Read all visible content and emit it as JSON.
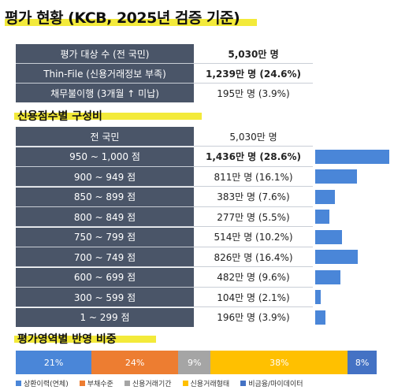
{
  "title": "평가 현황 (KCB, 2025년 검증 기준)",
  "summary": [
    {
      "label": "평가 대상 수 (전 국민)",
      "value": "5,030만 명",
      "bold": true
    },
    {
      "label": "Thin-File (신용거래정보 부족)",
      "value": "1,239만 명 (24.6%)",
      "bold": true
    },
    {
      "label": "채무불이행 (3개월 ↑ 미납)",
      "value": "195만 명 (3.9%)",
      "bold": false
    }
  ],
  "section_scores": "신용점수별 구성비",
  "score_rows": [
    {
      "label": "전 국민",
      "value": "5,030만 명",
      "pct": null,
      "bold": false
    },
    {
      "label": "950 ~ 1,000 점",
      "value": "1,436만 명 (28.6%)",
      "pct": 28.6,
      "bold": true
    },
    {
      "label": "900 ~ 949 점",
      "value": "811만 명 (16.1%)",
      "pct": 16.1,
      "bold": false
    },
    {
      "label": "850 ~ 899 점",
      "value": "383만 명 (7.6%)",
      "pct": 7.6,
      "bold": false
    },
    {
      "label": "800 ~ 849 점",
      "value": "277만 명 (5.5%)",
      "pct": 5.5,
      "bold": false
    },
    {
      "label": "750 ~ 799 점",
      "value": "514만 명 (10.2%)",
      "pct": 10.2,
      "bold": false
    },
    {
      "label": "700 ~ 749 점",
      "value": "826만 명 (16.4%)",
      "pct": 16.4,
      "bold": false
    },
    {
      "label": "600 ~ 699 점",
      "value": "482만 명 (9.6%)",
      "pct": 9.6,
      "bold": false
    },
    {
      "label": "300 ~ 599 점",
      "value": "104만 명 (2.1%)",
      "pct": 2.1,
      "bold": false
    },
    {
      "label": "1 ~ 299 점",
      "value": "196만 명 (3.9%)",
      "pct": 3.9,
      "bold": false
    }
  ],
  "section_weights": "평가영역별 반영 비중",
  "weights": [
    {
      "name": "상환이력(연체)",
      "pct": 21,
      "label": "21%",
      "color": "#4a86d8"
    },
    {
      "name": "부채수준",
      "pct": 24,
      "label": "24%",
      "color": "#ed7d31"
    },
    {
      "name": "신용거래기간",
      "pct": 9,
      "label": "9%",
      "color": "#a5a5a5"
    },
    {
      "name": "신용거래형태",
      "pct": 38,
      "label": "38%",
      "color": "#ffc000"
    },
    {
      "name": "비금융/마이데이터",
      "pct": 8,
      "label": "8%",
      "color": "#4472c4"
    }
  ],
  "colors": {
    "header_bg": "#4a5568",
    "bar": "#4a86d8",
    "highlight": "#f3ea3a"
  }
}
